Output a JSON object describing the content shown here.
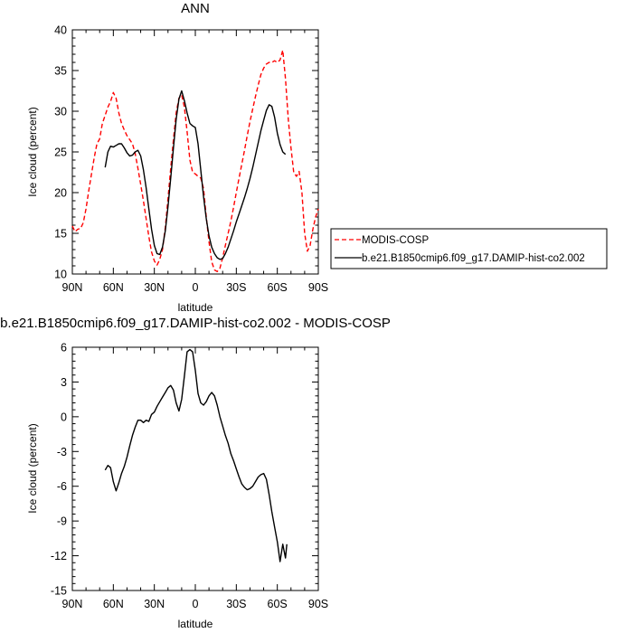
{
  "colors": {
    "modis": "#ff0000",
    "model": "#000000"
  },
  "chart_data": [
    {
      "type": "line",
      "title": "ANN",
      "xlabel": "latitude",
      "ylabel": "Ice cloud (percent)",
      "xlim": [
        90,
        -90
      ],
      "ylim": [
        10,
        40
      ],
      "xticks": [
        90,
        60,
        30,
        0,
        -30,
        -60,
        -90
      ],
      "xtick_labels": [
        "90N",
        "60N",
        "30N",
        "0",
        "30S",
        "60S",
        "90S"
      ],
      "yticks": [
        10,
        15,
        20,
        25,
        30,
        35,
        40
      ],
      "ytick_labels": [
        "10",
        "15",
        "20",
        "25",
        "30",
        "35",
        "40"
      ],
      "legend": "right",
      "series": [
        {
          "name": "MODIS-COSP",
          "style": "dashed",
          "color": "#ff0000",
          "x": [
            90,
            88,
            86,
            84,
            82,
            80,
            78,
            76,
            74,
            72,
            70,
            68,
            66,
            64,
            62,
            60,
            58,
            56,
            54,
            52,
            50,
            48,
            46,
            44,
            42,
            40,
            38,
            36,
            34,
            32,
            30,
            28,
            26,
            24,
            22,
            20,
            18,
            16,
            14,
            12,
            10,
            8,
            6,
            4,
            2,
            0,
            -2,
            -4,
            -6,
            -8,
            -10,
            -12,
            -14,
            -16,
            -18,
            -20,
            -22,
            -24,
            -26,
            -28,
            -30,
            -32,
            -34,
            -36,
            -38,
            -40,
            -42,
            -44,
            -46,
            -48,
            -50,
            -52,
            -54,
            -56,
            -58,
            -60,
            -62,
            -64,
            -66,
            -68,
            -70,
            -72,
            -74,
            -76,
            -78,
            -80,
            -82,
            -84,
            -86,
            -88,
            -90
          ],
          "y": [
            15.9,
            15.2,
            15.5,
            15.6,
            16.3,
            18.0,
            20.2,
            22.3,
            24.3,
            26.0,
            26.6,
            28.5,
            29.5,
            30.5,
            31.2,
            32.3,
            31.6,
            29.8,
            28.5,
            27.7,
            27.0,
            26.5,
            26.0,
            24.8,
            23.0,
            21.0,
            19.0,
            16.8,
            14.6,
            12.7,
            11.6,
            11.1,
            11.8,
            13.0,
            15.7,
            19.3,
            23.0,
            26.5,
            29.8,
            31.6,
            32.0,
            30.5,
            27.5,
            24.0,
            22.5,
            22.3,
            22.0,
            21.8,
            20.5,
            17.0,
            14.0,
            11.5,
            10.5,
            10.3,
            10.7,
            12.0,
            13.5,
            15.0,
            16.5,
            18.2,
            20.0,
            21.8,
            23.5,
            25.2,
            27.0,
            28.7,
            30.3,
            31.8,
            33.2,
            34.5,
            35.3,
            35.8,
            36.0,
            36.0,
            36.2,
            36.0,
            36.3,
            37.5,
            34.0,
            29.0,
            25.5,
            22.5,
            22.0,
            22.6,
            20.0,
            15.0,
            12.8,
            13.5,
            15.5,
            17.0,
            18.0
          ]
        },
        {
          "name": "b.e21.B1850cmip6.f09_g17.DAMIP-hist-co2.002",
          "style": "solid",
          "color": "#000000",
          "x": [
            66,
            64,
            62,
            60,
            58,
            56,
            54,
            52,
            50,
            48,
            46,
            44,
            42,
            40,
            38,
            36,
            34,
            32,
            30,
            28,
            26,
            24,
            22,
            20,
            18,
            16,
            14,
            12,
            10,
            8,
            6,
            4,
            2,
            0,
            -2,
            -4,
            -6,
            -8,
            -10,
            -12,
            -14,
            -16,
            -18,
            -20,
            -22,
            -24,
            -26,
            -28,
            -30,
            -32,
            -34,
            -36,
            -38,
            -40,
            -42,
            -44,
            -46,
            -48,
            -50,
            -52,
            -54,
            -56,
            -58,
            -60,
            -62,
            -64,
            -66
          ],
          "y": [
            23.1,
            25.0,
            25.7,
            25.6,
            25.8,
            26.0,
            26.0,
            25.5,
            24.9,
            24.5,
            24.6,
            25.0,
            25.2,
            24.5,
            22.8,
            20.6,
            18.0,
            15.5,
            13.5,
            12.5,
            12.4,
            13.3,
            15.3,
            18.3,
            21.8,
            25.5,
            29.0,
            31.5,
            32.5,
            31.3,
            29.8,
            28.5,
            28.2,
            28.0,
            26.0,
            22.8,
            19.5,
            16.8,
            14.7,
            13.3,
            12.5,
            12.0,
            11.8,
            11.9,
            12.5,
            13.3,
            14.3,
            15.3,
            16.4,
            17.4,
            18.4,
            19.4,
            20.5,
            21.7,
            23.1,
            24.6,
            26.1,
            27.6,
            28.9,
            30.1,
            30.8,
            30.6,
            29.3,
            27.3,
            25.9,
            25.0,
            24.7
          ]
        }
      ]
    },
    {
      "type": "line",
      "title": "b.e21.B1850cmip6.f09_g17.DAMIP-hist-co2.002 - MODIS-COSP",
      "xlabel": "latitude",
      "ylabel": "Ice cloud (percent)",
      "xlim": [
        90,
        -90
      ],
      "ylim": [
        -15,
        6
      ],
      "xticks": [
        90,
        60,
        30,
        0,
        -30,
        -60,
        -90
      ],
      "xtick_labels": [
        "90N",
        "60N",
        "30N",
        "0",
        "30S",
        "60S",
        "90S"
      ],
      "yticks": [
        -15,
        -12,
        -9,
        -6,
        -3,
        0,
        3,
        6
      ],
      "ytick_labels": [
        "-15",
        "-12",
        "-9",
        "-6",
        "-3",
        "0",
        "3",
        "6"
      ],
      "series": [
        {
          "style": "solid",
          "color": "#000000",
          "x": [
            66,
            64,
            62,
            60,
            58,
            56,
            54,
            52,
            50,
            48,
            46,
            44,
            42,
            40,
            38,
            36,
            34,
            32,
            30,
            28,
            26,
            24,
            22,
            20,
            18,
            16,
            14,
            12,
            10,
            8,
            6,
            4,
            2,
            0,
            -2,
            -4,
            -6,
            -8,
            -10,
            -12,
            -14,
            -16,
            -18,
            -20,
            -22,
            -24,
            -26,
            -28,
            -30,
            -32,
            -34,
            -36,
            -38,
            -40,
            -42,
            -44,
            -46,
            -48,
            -50,
            -52,
            -54,
            -56,
            -58,
            -60,
            -62,
            -64,
            -66,
            -67
          ],
          "y": [
            -4.6,
            -4.2,
            -4.4,
            -5.6,
            -6.4,
            -5.7,
            -4.9,
            -4.3,
            -3.5,
            -2.5,
            -1.6,
            -0.9,
            -0.3,
            -0.3,
            -0.5,
            -0.3,
            -0.4,
            0.2,
            0.4,
            0.9,
            1.3,
            1.7,
            2.1,
            2.5,
            2.7,
            2.3,
            1.2,
            0.5,
            1.5,
            3.5,
            5.6,
            5.8,
            5.6,
            4.0,
            2.0,
            1.2,
            1.0,
            1.3,
            1.8,
            2.1,
            1.8,
            1.0,
            0.0,
            -0.8,
            -1.6,
            -2.3,
            -3.2,
            -3.8,
            -4.5,
            -5.2,
            -5.8,
            -6.1,
            -6.3,
            -6.2,
            -6.0,
            -5.6,
            -5.2,
            -5.0,
            -4.9,
            -5.4,
            -6.7,
            -8.2,
            -9.5,
            -10.8,
            -12.5,
            -11.0,
            -12.2,
            -11.0
          ]
        }
      ]
    }
  ]
}
